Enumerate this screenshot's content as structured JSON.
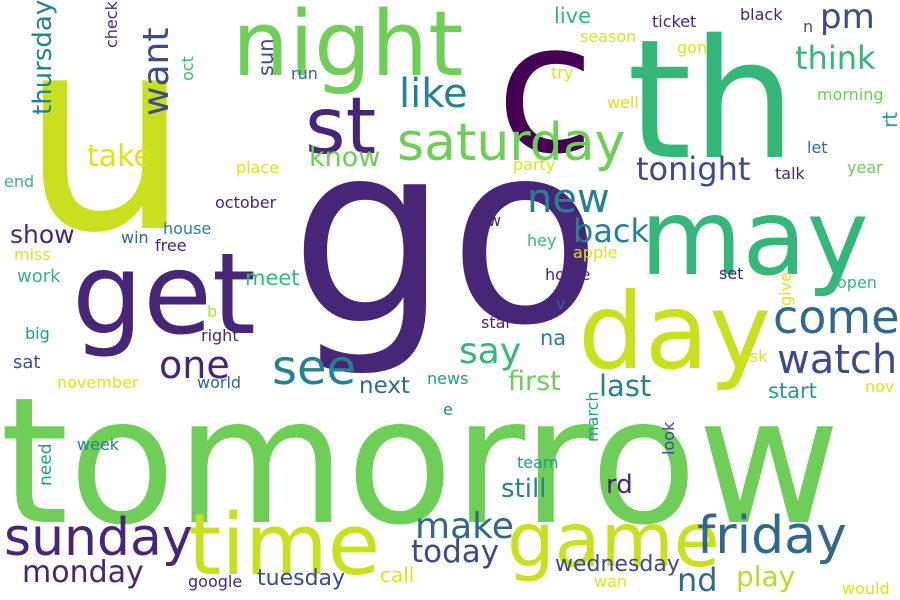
{
  "words": [
    {
      "text": "u",
      "color": "#c8e020"
    },
    {
      "text": "go",
      "color": "#482677"
    },
    {
      "text": "tomorrow",
      "color": "#6ece58"
    },
    {
      "text": "c",
      "color": "#440154"
    },
    {
      "text": "th",
      "color": "#35b779"
    },
    {
      "text": "night",
      "color": "#6ece58"
    },
    {
      "text": "get",
      "color": "#482677"
    },
    {
      "text": "may",
      "color": "#35b779"
    },
    {
      "text": "day",
      "color": "#c8e020"
    },
    {
      "text": "st",
      "color": "#482677"
    },
    {
      "text": "time",
      "color": "#c8e020"
    },
    {
      "text": "game",
      "color": "#c8e020"
    },
    {
      "text": "saturday",
      "color": "#6ece58"
    },
    {
      "text": "friday",
      "color": "#31688e"
    },
    {
      "text": "sunday",
      "color": "#482677"
    },
    {
      "text": "see",
      "color": "#26828e"
    },
    {
      "text": "come",
      "color": "#31688e"
    },
    {
      "text": "watch",
      "color": "#3e4a89"
    },
    {
      "text": "like",
      "color": "#26828e"
    },
    {
      "text": "new",
      "color": "#26828e"
    },
    {
      "text": "one",
      "color": "#482677"
    },
    {
      "text": "say",
      "color": "#35b779"
    },
    {
      "text": "make",
      "color": "#31688e"
    },
    {
      "text": "pm",
      "color": "#3e4a89"
    },
    {
      "text": "want",
      "color": "#3e4a89"
    },
    {
      "text": "think",
      "color": "#35b779"
    },
    {
      "text": "tonight",
      "color": "#3e4a89"
    },
    {
      "text": "back",
      "color": "#26828e"
    },
    {
      "text": "nd",
      "color": "#31688e"
    },
    {
      "text": "today",
      "color": "#3e4a89"
    },
    {
      "text": "take",
      "color": "#dde318"
    },
    {
      "text": "thursday",
      "color": "#26828e"
    },
    {
      "text": "monday",
      "color": "#482677"
    },
    {
      "text": "play",
      "color": "#b5de2b"
    },
    {
      "text": "know",
      "color": "#6ece58"
    },
    {
      "text": "last",
      "color": "#26828e"
    },
    {
      "text": "first",
      "color": "#6ece58"
    },
    {
      "text": "show",
      "color": "#482677"
    },
    {
      "text": "still",
      "color": "#26828e"
    },
    {
      "text": "rd",
      "color": "#482677"
    },
    {
      "text": "next",
      "color": "#31688e"
    },
    {
      "text": "wednesday",
      "color": "#3e4a89"
    },
    {
      "text": "tuesday",
      "color": "#3e4a89"
    },
    {
      "text": "meet",
      "color": "#35b779"
    },
    {
      "text": "live",
      "color": "#35b779"
    },
    {
      "text": "start",
      "color": "#1f9e89"
    },
    {
      "text": "na",
      "color": "#26828e"
    },
    {
      "text": "sun",
      "color": "#3e4a89"
    },
    {
      "text": "call",
      "color": "#dde318"
    },
    {
      "text": "rt",
      "color": "#1f9e89"
    },
    {
      "text": "work",
      "color": "#35b779"
    },
    {
      "text": "sat",
      "color": "#3e4a89"
    },
    {
      "text": "need",
      "color": "#1f9e89"
    },
    {
      "text": "home",
      "color": "#482677"
    },
    {
      "text": "ticket",
      "color": "#482677"
    },
    {
      "text": "black",
      "color": "#482677"
    },
    {
      "text": "check",
      "color": "#482677"
    },
    {
      "text": "october",
      "color": "#482677"
    },
    {
      "text": "house",
      "color": "#26828e"
    },
    {
      "text": "oct",
      "color": "#35b779"
    },
    {
      "text": "season",
      "color": "#dde318"
    },
    {
      "text": "gon",
      "color": "#dde318"
    },
    {
      "text": "try",
      "color": "#dde318"
    },
    {
      "text": "morning",
      "color": "#6ece58"
    },
    {
      "text": "well",
      "color": "#dde318"
    },
    {
      "text": "let",
      "color": "#31688e"
    },
    {
      "text": "talk",
      "color": "#482677"
    },
    {
      "text": "year",
      "color": "#6ece58"
    },
    {
      "text": "place",
      "color": "#dde318"
    },
    {
      "text": "party",
      "color": "#dde318"
    },
    {
      "text": "end",
      "color": "#35b779"
    },
    {
      "text": "run",
      "color": "#31688e"
    },
    {
      "text": "n",
      "color": "#3e4a89"
    },
    {
      "text": "w",
      "color": "#482677"
    },
    {
      "text": "win",
      "color": "#31688e"
    },
    {
      "text": "free",
      "color": "#482677"
    },
    {
      "text": "hey",
      "color": "#35b779"
    },
    {
      "text": "apple",
      "color": "#dde318"
    },
    {
      "text": "miss",
      "color": "#dde318"
    },
    {
      "text": "set",
      "color": "#482677"
    },
    {
      "text": "give",
      "color": "#dde318"
    },
    {
      "text": "open",
      "color": "#35b779"
    },
    {
      "text": "b",
      "color": "#b5de2b"
    },
    {
      "text": "big",
      "color": "#1f9e89"
    },
    {
      "text": "right",
      "color": "#482677"
    },
    {
      "text": "star",
      "color": "#482677"
    },
    {
      "text": "v",
      "color": "#31688e"
    },
    {
      "text": "ask",
      "color": "#dde318"
    },
    {
      "text": "november",
      "color": "#dde318"
    },
    {
      "text": "world",
      "color": "#31688e"
    },
    {
      "text": "news",
      "color": "#1f9e89"
    },
    {
      "text": "nov",
      "color": "#dde318"
    },
    {
      "text": "e",
      "color": "#26828e"
    },
    {
      "text": "march",
      "color": "#1f9e89"
    },
    {
      "text": "week",
      "color": "#26828e"
    },
    {
      "text": "look",
      "color": "#3e4a89"
    },
    {
      "text": "team",
      "color": "#1f9e89"
    },
    {
      "text": "google",
      "color": "#482677"
    },
    {
      "text": "wan",
      "color": "#dde318"
    },
    {
      "text": "would",
      "color": "#dde318"
    }
  ]
}
